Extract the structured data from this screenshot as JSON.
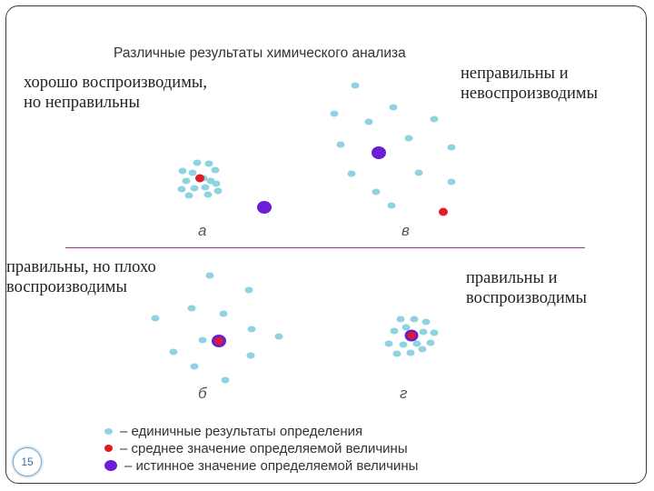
{
  "title": "Различные результаты химического анализа",
  "panels": {
    "a": {
      "letter": "а",
      "caption": "хорошо воспроизводимы,\nно неправильны"
    },
    "v": {
      "letter": "в",
      "caption": "неправильны и\nневоспроизводимы"
    },
    "b": {
      "letter": "б",
      "caption": "правильны, но плохо\nвоспроизводимы"
    },
    "g": {
      "letter": "г",
      "caption": "правильны и\nвоспроизводимы"
    }
  },
  "legend": [
    {
      "text": "– единичные результаты определения",
      "color": "#8fd3e3"
    },
    {
      "text": "– среднее значение определяемой величины",
      "color": "#e01c24"
    },
    {
      "text": "– истинное значение определяемой величины",
      "color": "#6a1fd6"
    }
  ],
  "colors": {
    "result": "#8fd3e3",
    "mean": "#e01c24",
    "true": "#6a1fd6",
    "divider": "#9b3a8f"
  },
  "page_number": "15"
}
